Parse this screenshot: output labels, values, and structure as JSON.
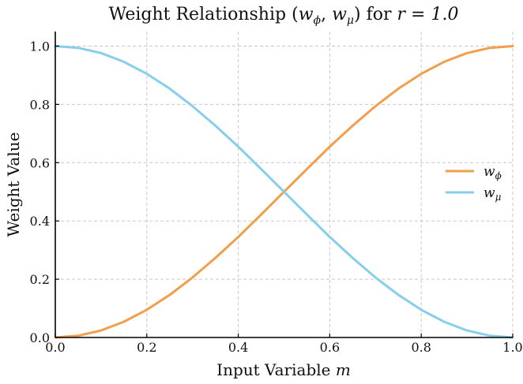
{
  "chart_data": {
    "type": "line",
    "title": {
      "prefix": "Weight Relationship (",
      "sym1": "w",
      "sub1": "ϕ",
      "sep": ", ",
      "sym2": "w",
      "sub2": "μ",
      "suffix": ") for ",
      "math": "r = 1.0"
    },
    "xlabel": {
      "text": "Input Variable ",
      "math": "m"
    },
    "ylabel": "Weight Value",
    "xlim": [
      0,
      1
    ],
    "ylim": [
      0,
      1.05
    ],
    "xticks": [
      "0.0",
      "0.2",
      "0.4",
      "0.6",
      "0.8",
      "1.0"
    ],
    "yticks": [
      "0.0",
      "0.2",
      "0.4",
      "0.6",
      "0.8",
      "1.0"
    ],
    "grid": true,
    "legend_position": "center-right",
    "x": [
      0.0,
      0.05,
      0.1,
      0.15,
      0.2,
      0.25,
      0.3,
      0.35,
      0.4,
      0.45,
      0.5,
      0.55,
      0.6,
      0.65,
      0.7,
      0.75,
      0.8,
      0.85,
      0.9,
      0.95,
      1.0
    ],
    "series": [
      {
        "name": "w_phi",
        "legend_sym": "w",
        "legend_sub": "ϕ",
        "color": "#f29e4c",
        "values": [
          0.0,
          0.006,
          0.024,
          0.054,
          0.095,
          0.146,
          0.206,
          0.273,
          0.345,
          0.422,
          0.5,
          0.578,
          0.655,
          0.727,
          0.794,
          0.854,
          0.905,
          0.946,
          0.976,
          0.994,
          1.0
        ]
      },
      {
        "name": "w_mu",
        "legend_sym": "w",
        "legend_sub": "μ",
        "color": "#87ceeb",
        "values": [
          1.0,
          0.994,
          0.976,
          0.946,
          0.905,
          0.854,
          0.794,
          0.727,
          0.655,
          0.578,
          0.5,
          0.422,
          0.345,
          0.273,
          0.206,
          0.146,
          0.095,
          0.054,
          0.024,
          0.006,
          0.0
        ]
      }
    ]
  }
}
